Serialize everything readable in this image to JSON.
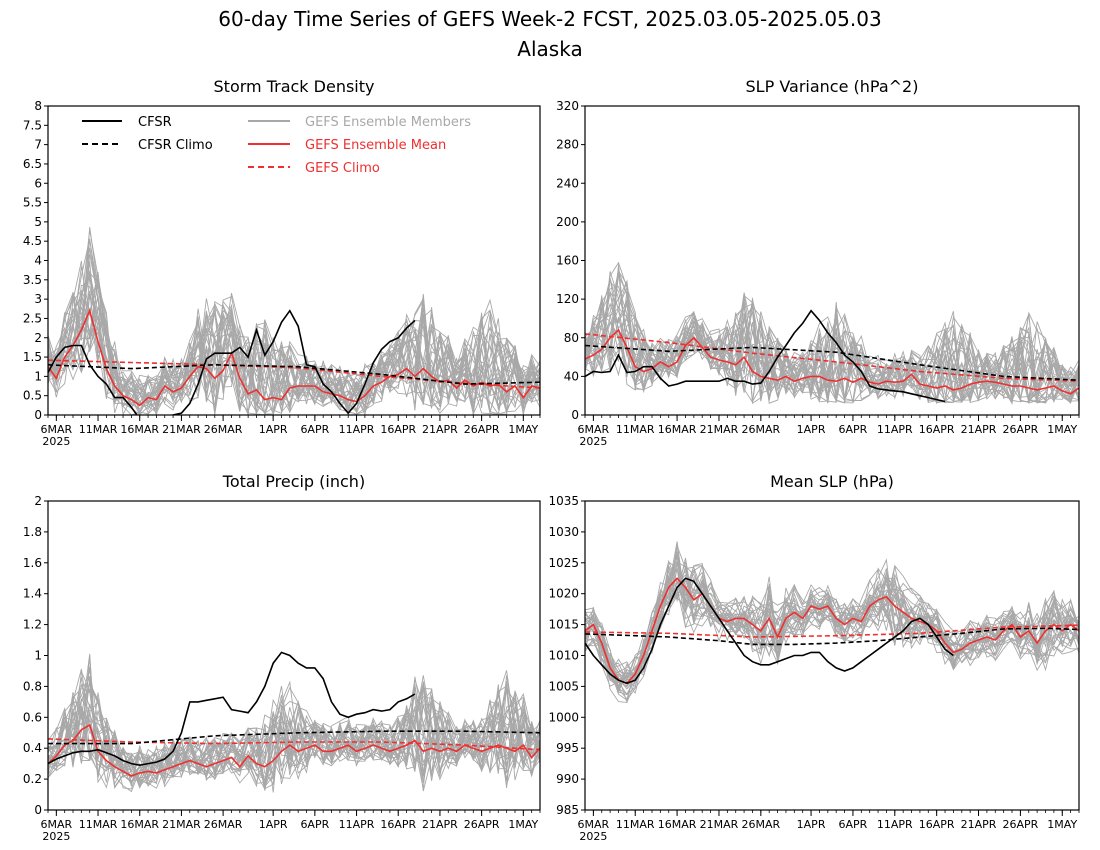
{
  "figure": {
    "title_line1": "60-day Time Series of GEFS Week-2 FCST, 2025.03.05-2025.05.03",
    "title_line2": "Alaska"
  },
  "colors": {
    "cfsr": "#000000",
    "members": "#a8a8a8",
    "ens_mean": "#ee3030",
    "gefs_climo": "#ee3030"
  },
  "legend": {
    "cfsr": "CFSR",
    "cfsr_climo": "CFSR Climo",
    "members": "GEFS Ensemble Members",
    "ens_mean": "GEFS Ensemble Mean",
    "gefs_climo": "GEFS Climo"
  },
  "x_axis": {
    "ticks": [
      {
        "day": 1,
        "label": "6MAR"
      },
      {
        "day": 6,
        "label": "11MAR"
      },
      {
        "day": 11,
        "label": "16MAR"
      },
      {
        "day": 16,
        "label": "21MAR"
      },
      {
        "day": 21,
        "label": "26MAR"
      },
      {
        "day": 27,
        "label": "1APR"
      },
      {
        "day": 32,
        "label": "6APR"
      },
      {
        "day": 37,
        "label": "11APR"
      },
      {
        "day": 42,
        "label": "16APR"
      },
      {
        "day": 47,
        "label": "21APR"
      },
      {
        "day": 52,
        "label": "26APR"
      },
      {
        "day": 57,
        "label": "1MAY"
      }
    ],
    "year_label": "2025",
    "xlim": [
      0,
      59
    ]
  },
  "chart_data": [
    {
      "type": "line",
      "title": "Storm Track Density",
      "ylim": [
        0,
        8
      ],
      "yticks": [
        0,
        0.5,
        1,
        1.5,
        2,
        2.5,
        3,
        3.5,
        4,
        4.5,
        5,
        5.5,
        6,
        6.5,
        7,
        7.5,
        8
      ],
      "ytick_labels": [
        "0",
        "0.5",
        "1",
        "1.5",
        "2",
        "2.5",
        "3",
        "3.5",
        "4",
        "4.5",
        "5",
        "5.5",
        "6",
        "6.5",
        "7",
        "7.5",
        "8"
      ],
      "members_envelope": {
        "low": 0.0,
        "high": 3.2,
        "peak_days": [
          5,
          20,
          26,
          45,
          53
        ]
      },
      "cfsr": {
        "x": [
          0,
          1,
          2,
          3,
          4,
          5,
          6,
          7,
          8,
          9,
          10,
          11,
          12,
          13,
          14,
          15,
          16,
          17,
          18,
          19,
          20,
          21,
          22,
          23,
          24,
          25,
          26,
          27,
          28,
          29,
          30,
          31,
          32,
          33,
          34,
          35,
          36,
          37,
          38,
          39,
          40,
          41,
          42,
          43,
          44
        ],
        "y": [
          1.1,
          1.5,
          1.75,
          1.8,
          1.8,
          1.3,
          1.0,
          0.8,
          0.45,
          0.45,
          0.2,
          -0.1,
          -0.2,
          -0.3,
          -0.2,
          0.0,
          0.05,
          0.3,
          0.8,
          1.45,
          1.6,
          1.6,
          1.6,
          1.75,
          1.5,
          2.2,
          1.55,
          1.9,
          2.4,
          2.7,
          2.3,
          1.3,
          1.25,
          0.8,
          0.6,
          0.3,
          0.05,
          0.3,
          0.8,
          1.35,
          1.7,
          1.9,
          2.0,
          2.25,
          2.45
        ]
      },
      "cfsr_climo": {
        "x": [
          0,
          10,
          20,
          30,
          40,
          50,
          59
        ],
        "y": [
          1.3,
          1.2,
          1.3,
          1.25,
          1.05,
          0.8,
          0.85
        ]
      },
      "ens_mean": {
        "x": [
          0,
          1,
          2,
          3,
          4,
          5,
          6,
          7,
          8,
          9,
          10,
          11,
          12,
          13,
          14,
          15,
          16,
          17,
          18,
          19,
          20,
          21,
          22,
          23,
          24,
          25,
          26,
          27,
          28,
          29,
          30,
          31,
          32,
          33,
          34,
          35,
          36,
          37,
          38,
          39,
          40,
          41,
          42,
          43,
          44,
          45,
          46,
          47,
          48,
          49,
          50,
          51,
          52,
          53,
          54,
          55,
          56,
          57,
          58,
          59
        ],
        "y": [
          1.25,
          0.95,
          1.5,
          1.8,
          2.2,
          2.7,
          1.9,
          1.2,
          0.75,
          0.5,
          0.4,
          0.25,
          0.45,
          0.4,
          0.75,
          0.6,
          0.7,
          1.0,
          1.25,
          1.2,
          0.95,
          1.15,
          1.6,
          0.95,
          0.55,
          0.65,
          0.4,
          0.45,
          0.4,
          0.7,
          0.75,
          0.75,
          0.75,
          0.6,
          0.55,
          0.5,
          0.4,
          0.35,
          0.5,
          0.75,
          0.85,
          1.0,
          1.05,
          1.2,
          1.0,
          1.2,
          1.0,
          0.85,
          0.9,
          0.7,
          0.9,
          0.75,
          0.85,
          0.75,
          0.8,
          0.6,
          0.75,
          0.45,
          0.75,
          0.7
        ]
      },
      "gefs_climo": {
        "x": [
          0,
          10,
          20,
          30,
          40,
          50,
          59
        ],
        "y": [
          1.42,
          1.36,
          1.3,
          1.22,
          1.0,
          0.82,
          0.7
        ]
      }
    },
    {
      "type": "line",
      "title": "SLP Variance (hPa^2)",
      "ylim": [
        0,
        320
      ],
      "yticks": [
        0,
        40,
        80,
        120,
        160,
        200,
        240,
        280,
        320
      ],
      "ytick_labels": [
        "0",
        "40",
        "80",
        "120",
        "160",
        "200",
        "240",
        "280",
        "320"
      ],
      "members_envelope": {
        "low": 12,
        "high": 130,
        "peak_days": [
          4,
          20,
          30,
          44,
          53
        ]
      },
      "cfsr": {
        "x": [
          0,
          1,
          2,
          3,
          4,
          5,
          6,
          7,
          8,
          9,
          10,
          11,
          12,
          13,
          14,
          15,
          16,
          17,
          18,
          19,
          20,
          21,
          22,
          23,
          24,
          25,
          26,
          27,
          28,
          29,
          30,
          31,
          32,
          33,
          34,
          35,
          36,
          37,
          38,
          39,
          40,
          41,
          42,
          43
        ],
        "y": [
          40,
          45,
          44,
          45,
          62,
          44,
          45,
          50,
          50,
          38,
          30,
          32,
          35,
          35,
          35,
          35,
          35,
          38,
          35,
          35,
          32,
          33,
          45,
          60,
          72,
          85,
          95,
          108,
          98,
          85,
          75,
          62,
          55,
          45,
          30,
          27,
          26,
          25,
          24,
          22,
          20,
          18,
          16,
          14
        ]
      },
      "cfsr_climo": {
        "x": [
          0,
          10,
          20,
          30,
          40,
          50,
          59
        ],
        "y": [
          72,
          66,
          70,
          65,
          52,
          40,
          36
        ]
      },
      "ens_mean": {
        "x": [
          0,
          1,
          2,
          3,
          4,
          5,
          6,
          7,
          8,
          9,
          10,
          11,
          12,
          13,
          14,
          15,
          16,
          17,
          18,
          19,
          20,
          21,
          22,
          23,
          24,
          25,
          26,
          27,
          28,
          29,
          30,
          31,
          32,
          33,
          34,
          35,
          36,
          37,
          38,
          39,
          40,
          41,
          42,
          43,
          44,
          45,
          46,
          47,
          48,
          49,
          50,
          51,
          52,
          53,
          54,
          55,
          56,
          57,
          58,
          59
        ],
        "y": [
          58,
          62,
          68,
          80,
          88,
          70,
          50,
          45,
          48,
          55,
          50,
          55,
          72,
          80,
          70,
          60,
          57,
          55,
          52,
          60,
          45,
          40,
          38,
          36,
          40,
          35,
          38,
          40,
          40,
          36,
          35,
          38,
          34,
          38,
          34,
          32,
          35,
          34,
          35,
          42,
          32,
          30,
          28,
          30,
          26,
          28,
          32,
          34,
          35,
          34,
          32,
          30,
          30,
          28,
          26,
          28,
          30,
          25,
          22,
          28
        ]
      },
      "gefs_climo": {
        "x": [
          0,
          10,
          20,
          30,
          40,
          50,
          59
        ],
        "y": [
          84,
          75,
          64,
          55,
          45,
          38,
          35
        ]
      }
    },
    {
      "type": "line",
      "title": "Total Precip (inch)",
      "ylim": [
        0,
        2
      ],
      "yticks": [
        0,
        0.2,
        0.4,
        0.6,
        0.8,
        1,
        1.2,
        1.4,
        1.6,
        1.8,
        2
      ],
      "ytick_labels": [
        "0",
        "0.2",
        "0.4",
        "0.6",
        "0.8",
        "1",
        "1.2",
        "1.4",
        "1.6",
        "1.8",
        "2"
      ],
      "members_envelope": {
        "low": 0.05,
        "high": 0.75,
        "peak_days": [
          5,
          28,
          45,
          55
        ]
      },
      "cfsr": {
        "x": [
          0,
          1,
          2,
          3,
          4,
          5,
          6,
          7,
          8,
          9,
          10,
          11,
          12,
          13,
          14,
          15,
          16,
          17,
          18,
          19,
          20,
          21,
          22,
          23,
          24,
          25,
          26,
          27,
          28,
          29,
          30,
          31,
          32,
          33,
          34,
          35,
          36,
          37,
          38,
          39,
          40,
          41,
          42,
          43,
          44
        ],
        "y": [
          0.3,
          0.33,
          0.35,
          0.37,
          0.38,
          0.38,
          0.39,
          0.37,
          0.35,
          0.32,
          0.3,
          0.29,
          0.3,
          0.31,
          0.33,
          0.38,
          0.5,
          0.7,
          0.7,
          0.71,
          0.72,
          0.73,
          0.65,
          0.64,
          0.63,
          0.7,
          0.8,
          0.95,
          1.02,
          1.0,
          0.95,
          0.92,
          0.92,
          0.85,
          0.7,
          0.62,
          0.6,
          0.62,
          0.63,
          0.65,
          0.64,
          0.65,
          0.7,
          0.72,
          0.75
        ]
      },
      "cfsr_climo": {
        "x": [
          0,
          10,
          20,
          30,
          40,
          50,
          59
        ],
        "y": [
          0.43,
          0.43,
          0.48,
          0.5,
          0.51,
          0.51,
          0.5
        ]
      },
      "ens_mean": {
        "x": [
          0,
          1,
          2,
          3,
          4,
          5,
          6,
          7,
          8,
          9,
          10,
          11,
          12,
          13,
          14,
          15,
          16,
          17,
          18,
          19,
          20,
          21,
          22,
          23,
          24,
          25,
          26,
          27,
          28,
          29,
          30,
          31,
          32,
          33,
          34,
          35,
          36,
          37,
          38,
          39,
          40,
          41,
          42,
          43,
          44,
          45,
          46,
          47,
          48,
          49,
          50,
          51,
          52,
          53,
          54,
          55,
          56,
          57,
          58,
          59
        ],
        "y": [
          0.3,
          0.35,
          0.42,
          0.45,
          0.52,
          0.55,
          0.38,
          0.32,
          0.28,
          0.25,
          0.22,
          0.24,
          0.25,
          0.24,
          0.26,
          0.28,
          0.3,
          0.32,
          0.3,
          0.28,
          0.3,
          0.32,
          0.34,
          0.28,
          0.35,
          0.3,
          0.28,
          0.32,
          0.38,
          0.42,
          0.38,
          0.4,
          0.42,
          0.38,
          0.38,
          0.4,
          0.42,
          0.38,
          0.4,
          0.42,
          0.4,
          0.38,
          0.4,
          0.42,
          0.45,
          0.38,
          0.4,
          0.38,
          0.4,
          0.38,
          0.42,
          0.4,
          0.38,
          0.4,
          0.42,
          0.4,
          0.38,
          0.42,
          0.34,
          0.4
        ]
      },
      "gefs_climo": {
        "x": [
          0,
          10,
          20,
          30,
          40,
          50,
          59
        ],
        "y": [
          0.46,
          0.44,
          0.43,
          0.44,
          0.44,
          0.42,
          0.39
        ]
      }
    },
    {
      "type": "line",
      "title": "Mean SLP (hPa)",
      "ylim": [
        985,
        1035
      ],
      "yticks": [
        985,
        990,
        995,
        1000,
        1005,
        1010,
        1015,
        1020,
        1025,
        1030,
        1035
      ],
      "ytick_labels": [
        "985",
        "990",
        "995",
        "1000",
        "1005",
        "1010",
        "1015",
        "1020",
        "1025",
        "1030",
        "1035"
      ],
      "members_envelope": {
        "low": -9,
        "high": 9,
        "peak_days": [
          12,
          22,
          37,
          55
        ]
      },
      "cfsr": {
        "x": [
          0,
          1,
          2,
          3,
          4,
          5,
          6,
          7,
          8,
          9,
          10,
          11,
          12,
          13,
          14,
          15,
          16,
          17,
          18,
          19,
          20,
          21,
          22,
          23,
          24,
          25,
          26,
          27,
          28,
          29,
          30,
          31,
          32,
          33,
          34,
          35,
          36,
          37,
          38,
          39,
          40,
          41,
          42,
          43,
          44
        ],
        "y": [
          1012,
          1010,
          1008.5,
          1007,
          1006,
          1005.5,
          1006,
          1008,
          1011,
          1015,
          1018,
          1021,
          1022.5,
          1022,
          1020,
          1018,
          1016,
          1014,
          1012,
          1010,
          1009,
          1008.5,
          1008.5,
          1009,
          1009.5,
          1010,
          1010,
          1010.5,
          1010.5,
          1009,
          1008,
          1007.5,
          1008,
          1009,
          1010,
          1011,
          1012,
          1013,
          1014,
          1015.5,
          1016,
          1015,
          1013,
          1011,
          1010
        ]
      },
      "cfsr_climo": {
        "x": [
          0,
          6,
          10,
          16,
          20,
          25,
          30,
          35,
          40,
          45,
          50,
          55,
          59
        ],
        "y": [
          1013.5,
          1013.2,
          1013.0,
          1012.4,
          1011.8,
          1011.8,
          1012.0,
          1012.4,
          1013.0,
          1013.6,
          1014.3,
          1014.4,
          1014.2
        ]
      },
      "ens_mean": {
        "x": [
          0,
          1,
          2,
          3,
          4,
          5,
          6,
          7,
          8,
          9,
          10,
          11,
          12,
          13,
          14,
          15,
          16,
          17,
          18,
          19,
          20,
          21,
          22,
          23,
          24,
          25,
          26,
          27,
          28,
          29,
          30,
          31,
          32,
          33,
          34,
          35,
          36,
          37,
          38,
          39,
          40,
          41,
          42,
          43,
          44,
          45,
          46,
          47,
          48,
          49,
          50,
          51,
          52,
          53,
          54,
          55,
          56,
          57,
          58,
          59
        ],
        "y": [
          1014,
          1015,
          1012,
          1008,
          1006,
          1005.5,
          1007,
          1010,
          1014,
          1018,
          1021,
          1022.5,
          1021,
          1019,
          1020,
          1018,
          1016,
          1015.5,
          1016,
          1016,
          1015,
          1014,
          1016,
          1013,
          1016,
          1017,
          1016,
          1018,
          1017.5,
          1018,
          1016,
          1015,
          1016,
          1015.5,
          1018,
          1019,
          1019.5,
          1018,
          1017,
          1016,
          1015.5,
          1015,
          1014,
          1012,
          1010.5,
          1011,
          1012,
          1012.5,
          1013,
          1012.5,
          1014,
          1015,
          1013,
          1014,
          1012,
          1014,
          1015,
          1014,
          1015,
          1014
        ]
      },
      "gefs_climo": {
        "x": [
          0,
          10,
          20,
          30,
          40,
          50,
          59
        ],
        "y": [
          1013.8,
          1013.6,
          1013.0,
          1013.2,
          1013.6,
          1014.6,
          1014.9
        ]
      }
    }
  ]
}
